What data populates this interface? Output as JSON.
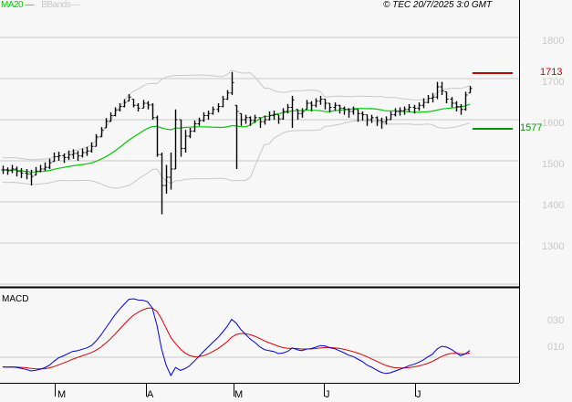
{
  "header": {
    "legend_ma": "MA20",
    "legend_bb": "BBands",
    "copyright": "© TEC 20/7/2025 3:0 GMT"
  },
  "colors": {
    "background": "#f7f7f7",
    "ma20": "#00cc00",
    "bbands": "#c8c8c8",
    "resistance": "#cc0000",
    "support": "#009900",
    "macd": "#0000dd",
    "signal": "#dd0000",
    "bars": "#000000"
  },
  "chart_data": [
    {
      "type": "ohlc",
      "title": "",
      "overlays": [
        "MA20",
        "BBands"
      ],
      "y_axis": {
        "position": "right",
        "ticks": [
          "1800",
          "1700",
          "1600",
          "1500",
          "1400",
          "1300"
        ],
        "range": [
          1200,
          1900
        ]
      },
      "x_axis": {
        "ticks": [
          "M",
          "A",
          "M",
          "J",
          "J"
        ]
      },
      "grid": true,
      "levels": {
        "resistance": "1713",
        "support": "1577"
      },
      "bars_hlc": [
        [
          1488,
          1468,
          1478
        ],
        [
          1484,
          1466,
          1476
        ],
        [
          1490,
          1470,
          1480
        ],
        [
          1486,
          1462,
          1474
        ],
        [
          1482,
          1458,
          1470
        ],
        [
          1480,
          1455,
          1468
        ],
        [
          1478,
          1440,
          1462
        ],
        [
          1485,
          1465,
          1475
        ],
        [
          1490,
          1472,
          1480
        ],
        [
          1496,
          1476,
          1484
        ],
        [
          1505,
          1480,
          1495
        ],
        [
          1520,
          1498,
          1510
        ],
        [
          1522,
          1500,
          1512
        ],
        [
          1518,
          1495,
          1508
        ],
        [
          1525,
          1502,
          1515
        ],
        [
          1528,
          1505,
          1518
        ],
        [
          1524,
          1500,
          1512
        ],
        [
          1530,
          1508,
          1520
        ],
        [
          1534,
          1512,
          1524
        ],
        [
          1545,
          1520,
          1535
        ],
        [
          1565,
          1535,
          1558
        ],
        [
          1582,
          1558,
          1575
        ],
        [
          1604,
          1580,
          1596
        ],
        [
          1618,
          1595,
          1610
        ],
        [
          1630,
          1608,
          1624
        ],
        [
          1640,
          1620,
          1632
        ],
        [
          1650,
          1630,
          1642
        ],
        [
          1662,
          1645,
          1655
        ],
        [
          1650,
          1630,
          1635
        ],
        [
          1640,
          1620,
          1628
        ],
        [
          1648,
          1628,
          1640
        ],
        [
          1645,
          1625,
          1636
        ],
        [
          1640,
          1600,
          1605
        ],
        [
          1610,
          1510,
          1515
        ],
        [
          1520,
          1370,
          1440
        ],
        [
          1490,
          1420,
          1460
        ],
        [
          1520,
          1430,
          1480
        ],
        [
          1625,
          1480,
          1600
        ],
        [
          1600,
          1510,
          1530
        ],
        [
          1575,
          1520,
          1560
        ],
        [
          1580,
          1555,
          1572
        ],
        [
          1598,
          1570,
          1590
        ],
        [
          1605,
          1585,
          1598
        ],
        [
          1618,
          1595,
          1610
        ],
        [
          1622,
          1600,
          1615
        ],
        [
          1632,
          1612,
          1625
        ],
        [
          1640,
          1618,
          1632
        ],
        [
          1658,
          1630,
          1650
        ],
        [
          1672,
          1648,
          1665
        ],
        [
          1716,
          1660,
          1690
        ],
        [
          1635,
          1480,
          1620
        ],
        [
          1615,
          1585,
          1600
        ],
        [
          1612,
          1590,
          1605
        ],
        [
          1608,
          1585,
          1598
        ],
        [
          1612,
          1592,
          1605
        ],
        [
          1605,
          1580,
          1595
        ],
        [
          1610,
          1588,
          1600
        ],
        [
          1620,
          1598,
          1610
        ],
        [
          1622,
          1600,
          1612
        ],
        [
          1612,
          1590,
          1602
        ],
        [
          1628,
          1600,
          1620
        ],
        [
          1638,
          1615,
          1630
        ],
        [
          1658,
          1580,
          1648
        ],
        [
          1625,
          1600,
          1615
        ],
        [
          1628,
          1605,
          1620
        ],
        [
          1648,
          1625,
          1640
        ],
        [
          1645,
          1620,
          1635
        ],
        [
          1652,
          1630,
          1645
        ],
        [
          1658,
          1636,
          1650
        ],
        [
          1650,
          1625,
          1640
        ],
        [
          1640,
          1618,
          1630
        ],
        [
          1642,
          1622,
          1635
        ],
        [
          1636,
          1615,
          1628
        ],
        [
          1632,
          1612,
          1625
        ],
        [
          1628,
          1605,
          1620
        ],
        [
          1632,
          1612,
          1625
        ],
        [
          1625,
          1595,
          1615
        ],
        [
          1620,
          1598,
          1612
        ],
        [
          1612,
          1585,
          1600
        ],
        [
          1612,
          1592,
          1605
        ],
        [
          1608,
          1585,
          1598
        ],
        [
          1605,
          1578,
          1595
        ],
        [
          1608,
          1588,
          1600
        ],
        [
          1620,
          1600,
          1612
        ],
        [
          1628,
          1608,
          1620
        ],
        [
          1630,
          1610,
          1622
        ],
        [
          1632,
          1612,
          1625
        ],
        [
          1638,
          1618,
          1630
        ],
        [
          1636,
          1615,
          1628
        ],
        [
          1642,
          1622,
          1635
        ],
        [
          1652,
          1628,
          1642
        ],
        [
          1660,
          1640,
          1652
        ],
        [
          1665,
          1642,
          1655
        ],
        [
          1692,
          1650,
          1680
        ],
        [
          1692,
          1660,
          1670
        ],
        [
          1668,
          1640,
          1650
        ],
        [
          1655,
          1630,
          1640
        ],
        [
          1645,
          1620,
          1632
        ],
        [
          1638,
          1612,
          1625
        ],
        [
          1668,
          1622,
          1660
        ],
        [
          1682,
          1665,
          1676
        ]
      ]
    },
    {
      "type": "line",
      "title": "MACD",
      "series": [
        "MACD",
        "Signal"
      ],
      "y_axis": {
        "position": "right",
        "ticks": [
          "030",
          "010"
        ]
      }
    }
  ]
}
